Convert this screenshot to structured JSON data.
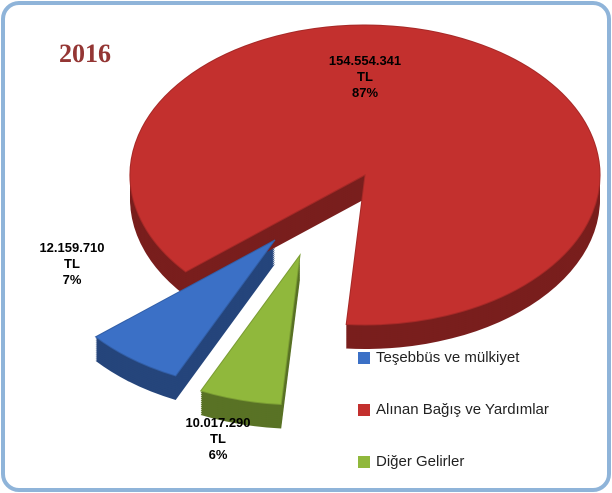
{
  "chart_data": {
    "type": "pie",
    "title": "2016",
    "categories": [
      "Teşebbüs ve mülkiyet",
      "Alınan Bağış ve Yardımlar",
      "Diğer Gelirler"
    ],
    "values": [
      12159710,
      154554341,
      10017290
    ],
    "value_labels": [
      "12.159.710\nTL\n7%",
      "154.554.341\nTL\n87%",
      "10.017.290\nTL\n6%"
    ],
    "colors": [
      "#3b70c6",
      "#c3302e",
      "#90b83c"
    ],
    "legend": "lower right"
  }
}
